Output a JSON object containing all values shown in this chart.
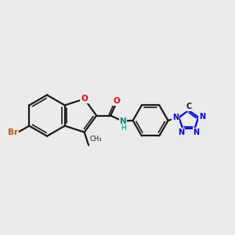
{
  "background_color": "#ebebeb",
  "bond_color": "#1a1a1a",
  "o_color": "#ff0000",
  "br_color": "#cc5500",
  "n_color": "#0000ff",
  "nh_color": "#008080",
  "figsize": [
    3.0,
    3.0
  ],
  "dpi": 100,
  "xlim": [
    0,
    12
  ],
  "ylim": [
    0,
    10
  ]
}
